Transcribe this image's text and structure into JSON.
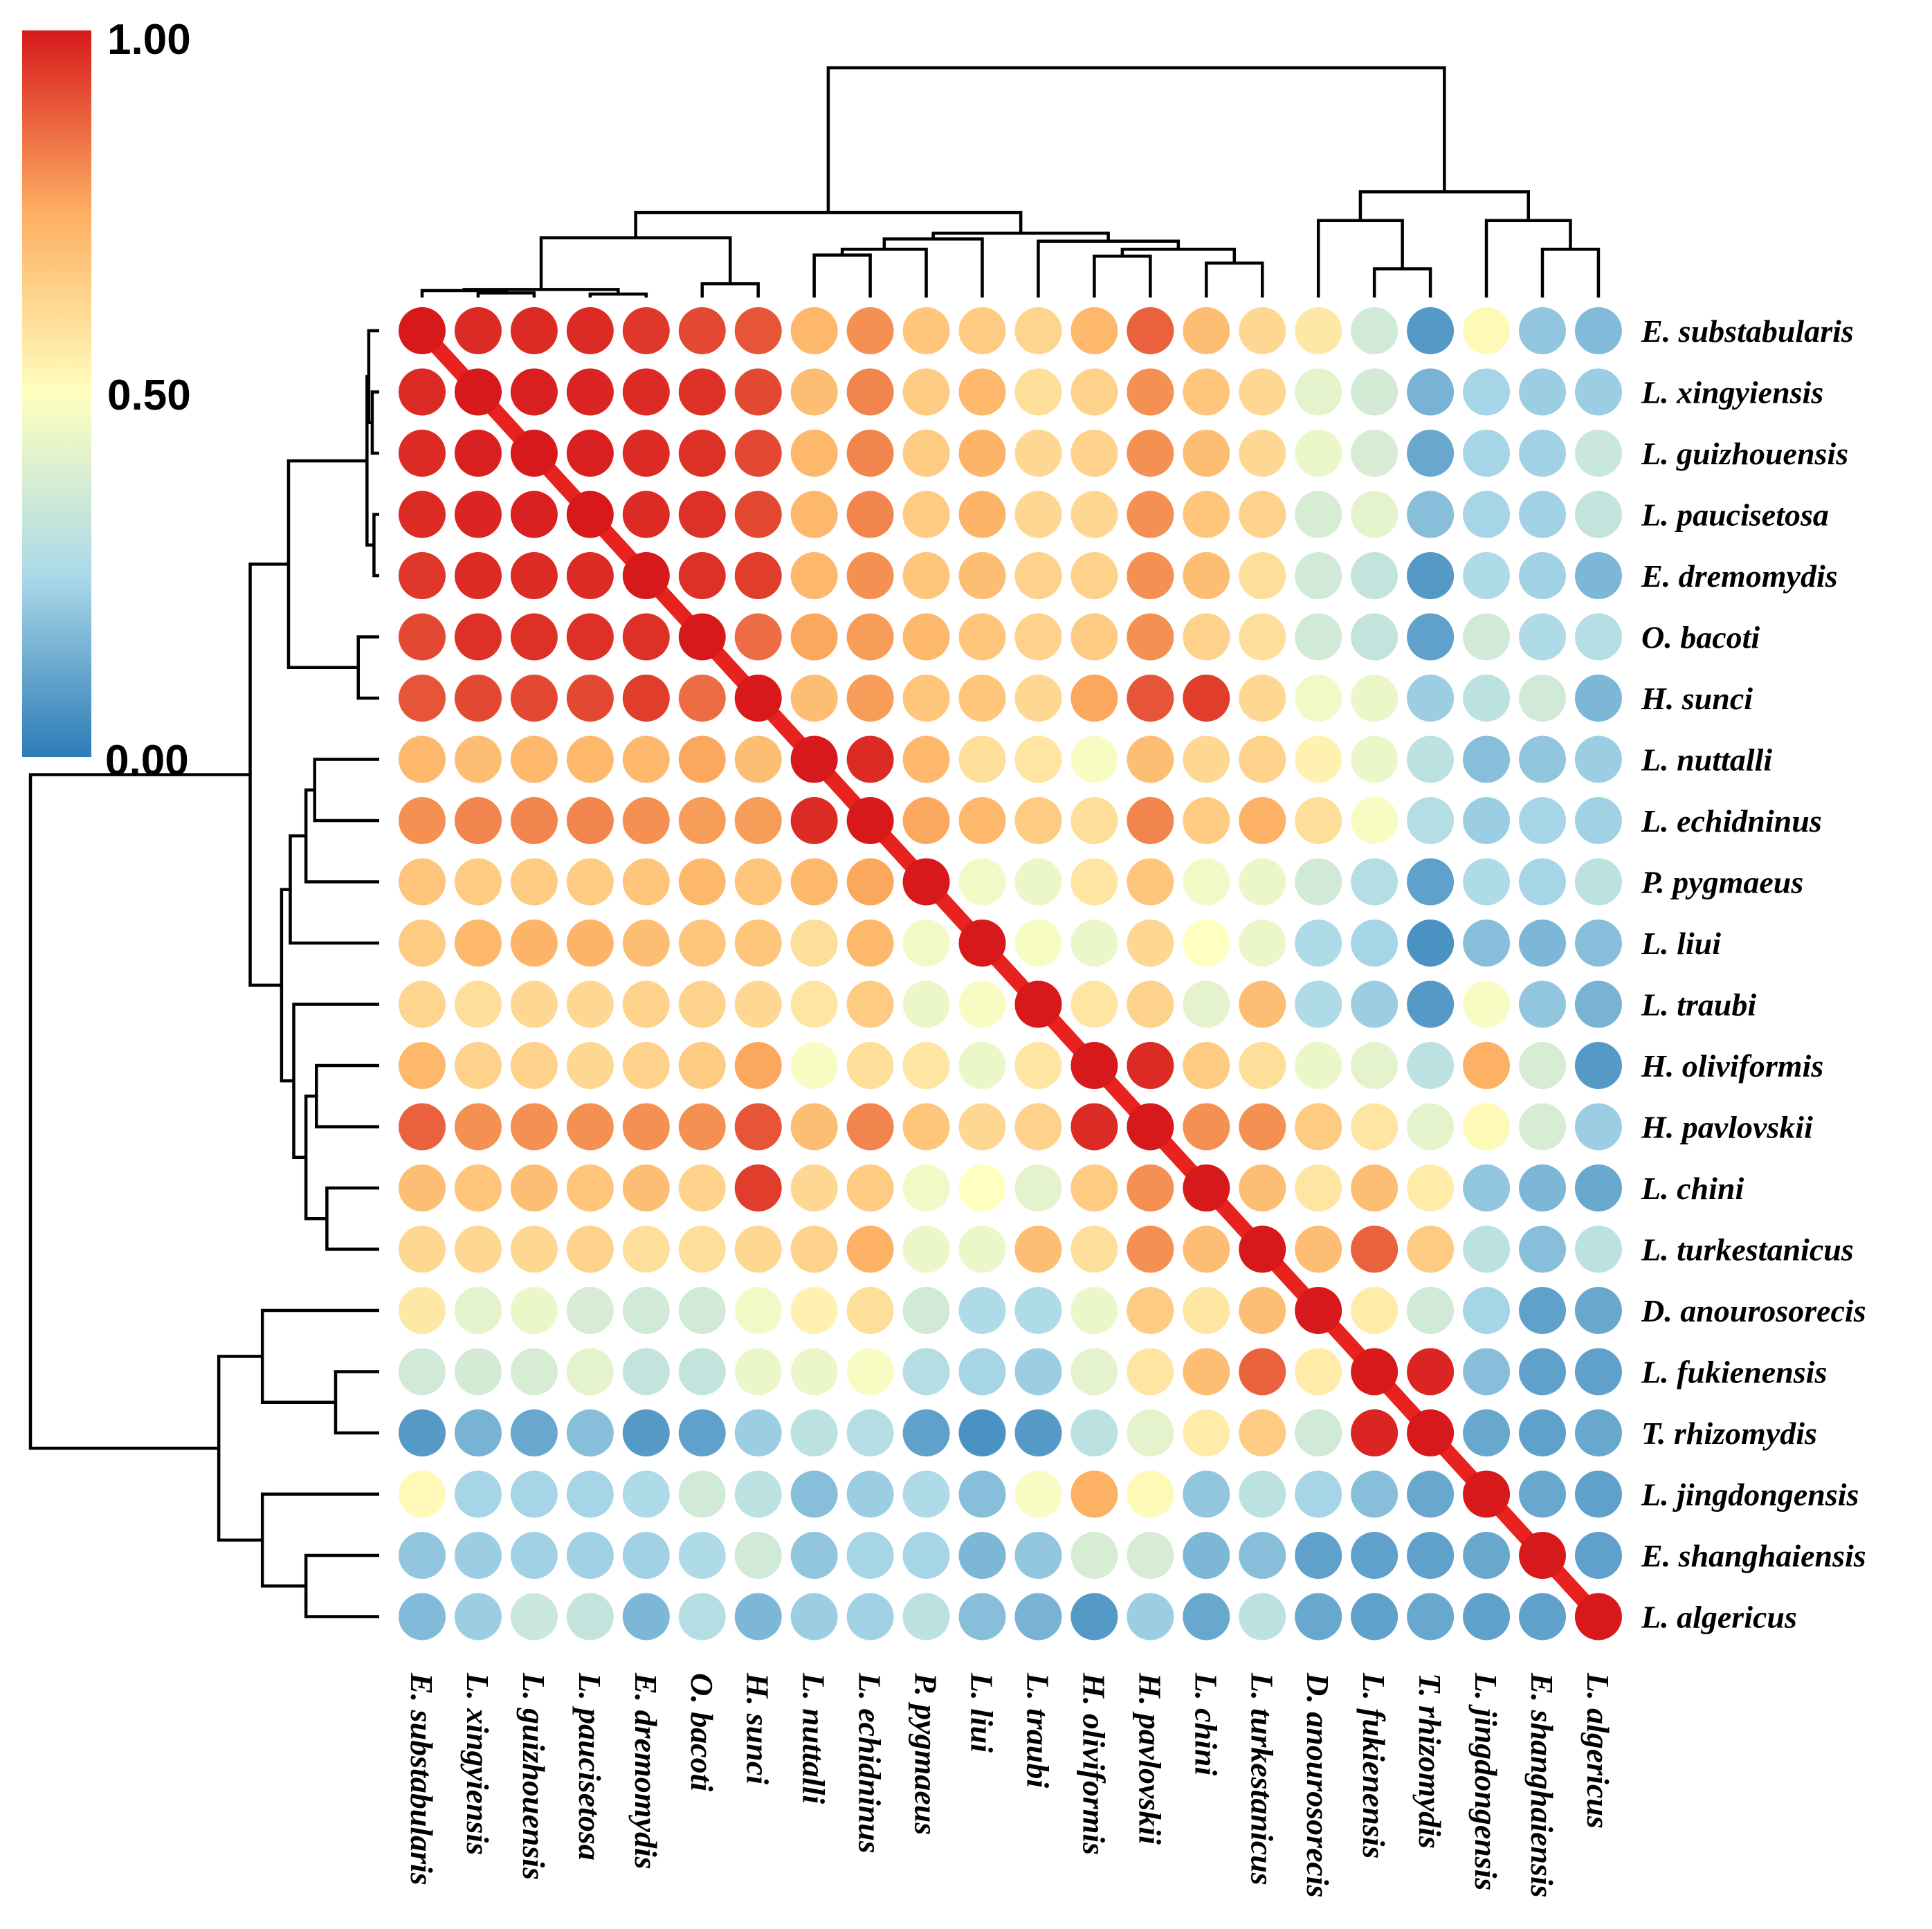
{
  "chart_data": {
    "type": "heatmap",
    "marker": "circle",
    "colorbar": {
      "min": 0.0,
      "max": 1.0,
      "ticks": [
        "1.00",
        "0.50",
        "0.00"
      ],
      "colors": [
        "#2c7bb6",
        "#abd9e9",
        "#ffffbf",
        "#fdae61",
        "#d7191c"
      ]
    },
    "labels": [
      "E. substabularis",
      "L. xingyiensis",
      "L. guizhouensis",
      "L. paucisetosa",
      "E. dremomydis",
      "O. bacoti",
      "H. sunci",
      "L. nuttalli",
      "L. echidninus",
      "P. pygmaeus",
      "L. liui",
      "L. traubi",
      "H. oliviformis",
      "H. pavlovskii",
      "L. chini",
      "L. turkestanicus",
      "D. anourosorecis",
      "L. fukienensis",
      "T. rhizomydis",
      "L. jingdongensis",
      "E. shanghaiensis",
      "L. algericus"
    ],
    "matrix": [
      [
        1.0,
        0.97,
        0.97,
        0.97,
        0.95,
        0.92,
        0.9,
        0.72,
        0.8,
        0.68,
        0.66,
        0.63,
        0.72,
        0.88,
        0.7,
        0.62,
        0.57,
        0.36,
        0.08,
        0.52,
        0.2,
        0.17
      ],
      [
        0.97,
        1.0,
        0.99,
        0.98,
        0.97,
        0.96,
        0.92,
        0.7,
        0.82,
        0.66,
        0.72,
        0.6,
        0.64,
        0.8,
        0.68,
        0.62,
        0.42,
        0.37,
        0.15,
        0.24,
        0.22,
        0.22
      ],
      [
        0.97,
        0.99,
        1.0,
        0.99,
        0.97,
        0.96,
        0.92,
        0.72,
        0.82,
        0.66,
        0.73,
        0.62,
        0.64,
        0.8,
        0.7,
        0.62,
        0.44,
        0.38,
        0.12,
        0.24,
        0.23,
        0.34
      ],
      [
        0.97,
        0.98,
        0.99,
        1.0,
        0.97,
        0.96,
        0.92,
        0.72,
        0.82,
        0.66,
        0.73,
        0.62,
        0.62,
        0.8,
        0.68,
        0.64,
        0.38,
        0.42,
        0.18,
        0.24,
        0.23,
        0.32
      ],
      [
        0.95,
        0.97,
        0.97,
        0.97,
        1.0,
        0.96,
        0.94,
        0.72,
        0.8,
        0.68,
        0.7,
        0.64,
        0.64,
        0.8,
        0.7,
        0.6,
        0.36,
        0.32,
        0.08,
        0.26,
        0.23,
        0.16
      ],
      [
        0.92,
        0.96,
        0.96,
        0.96,
        0.96,
        1.0,
        0.86,
        0.76,
        0.78,
        0.72,
        0.68,
        0.64,
        0.66,
        0.8,
        0.64,
        0.6,
        0.36,
        0.32,
        0.1,
        0.36,
        0.26,
        0.28
      ],
      [
        0.9,
        0.92,
        0.92,
        0.92,
        0.94,
        0.86,
        1.0,
        0.7,
        0.78,
        0.68,
        0.68,
        0.62,
        0.76,
        0.9,
        0.94,
        0.62,
        0.46,
        0.44,
        0.22,
        0.3,
        0.36,
        0.16
      ],
      [
        0.72,
        0.7,
        0.72,
        0.72,
        0.72,
        0.76,
        0.7,
        1.0,
        0.97,
        0.72,
        0.6,
        0.58,
        0.48,
        0.7,
        0.62,
        0.64,
        0.54,
        0.44,
        0.3,
        0.18,
        0.2,
        0.22
      ],
      [
        0.8,
        0.82,
        0.82,
        0.82,
        0.8,
        0.78,
        0.78,
        0.97,
        1.0,
        0.76,
        0.72,
        0.66,
        0.6,
        0.82,
        0.66,
        0.74,
        0.6,
        0.48,
        0.28,
        0.22,
        0.24,
        0.23
      ],
      [
        0.68,
        0.66,
        0.66,
        0.66,
        0.68,
        0.72,
        0.68,
        0.72,
        0.76,
        1.0,
        0.46,
        0.44,
        0.58,
        0.68,
        0.46,
        0.44,
        0.36,
        0.28,
        0.1,
        0.26,
        0.24,
        0.3
      ],
      [
        0.66,
        0.72,
        0.73,
        0.73,
        0.7,
        0.68,
        0.68,
        0.6,
        0.72,
        0.46,
        1.0,
        0.48,
        0.44,
        0.62,
        0.5,
        0.44,
        0.26,
        0.24,
        0.06,
        0.18,
        0.16,
        0.18
      ],
      [
        0.63,
        0.6,
        0.62,
        0.62,
        0.64,
        0.64,
        0.62,
        0.58,
        0.66,
        0.44,
        0.48,
        1.0,
        0.58,
        0.64,
        0.42,
        0.7,
        0.26,
        0.22,
        0.08,
        0.48,
        0.2,
        0.15
      ],
      [
        0.72,
        0.64,
        0.64,
        0.62,
        0.64,
        0.66,
        0.76,
        0.48,
        0.6,
        0.58,
        0.44,
        0.58,
        1.0,
        0.97,
        0.66,
        0.6,
        0.44,
        0.42,
        0.3,
        0.74,
        0.38,
        0.08
      ],
      [
        0.88,
        0.8,
        0.8,
        0.8,
        0.8,
        0.8,
        0.9,
        0.7,
        0.82,
        0.68,
        0.62,
        0.64,
        0.97,
        1.0,
        0.8,
        0.8,
        0.66,
        0.58,
        0.42,
        0.52,
        0.38,
        0.22
      ],
      [
        0.7,
        0.68,
        0.7,
        0.68,
        0.7,
        0.64,
        0.94,
        0.62,
        0.66,
        0.46,
        0.5,
        0.42,
        0.66,
        0.8,
        1.0,
        0.7,
        0.58,
        0.7,
        0.56,
        0.2,
        0.16,
        0.12
      ],
      [
        0.62,
        0.62,
        0.62,
        0.64,
        0.6,
        0.6,
        0.62,
        0.64,
        0.74,
        0.44,
        0.44,
        0.7,
        0.6,
        0.8,
        0.7,
        1.0,
        0.7,
        0.88,
        0.66,
        0.3,
        0.18,
        0.3
      ],
      [
        0.57,
        0.42,
        0.44,
        0.38,
        0.36,
        0.36,
        0.46,
        0.54,
        0.6,
        0.36,
        0.26,
        0.26,
        0.44,
        0.66,
        0.58,
        0.7,
        1.0,
        0.56,
        0.36,
        0.24,
        0.1,
        0.12
      ],
      [
        0.36,
        0.37,
        0.38,
        0.42,
        0.32,
        0.32,
        0.44,
        0.44,
        0.48,
        0.28,
        0.24,
        0.22,
        0.42,
        0.58,
        0.7,
        0.88,
        0.56,
        1.0,
        0.98,
        0.18,
        0.1,
        0.1
      ],
      [
        0.08,
        0.15,
        0.12,
        0.18,
        0.08,
        0.1,
        0.22,
        0.3,
        0.28,
        0.1,
        0.06,
        0.08,
        0.3,
        0.42,
        0.56,
        0.66,
        0.36,
        0.98,
        1.0,
        0.12,
        0.1,
        0.12
      ],
      [
        0.52,
        0.24,
        0.24,
        0.24,
        0.26,
        0.36,
        0.3,
        0.18,
        0.22,
        0.26,
        0.18,
        0.48,
        0.74,
        0.52,
        0.2,
        0.3,
        0.24,
        0.18,
        0.12,
        1.0,
        0.12,
        0.1
      ],
      [
        0.2,
        0.22,
        0.23,
        0.23,
        0.23,
        0.26,
        0.36,
        0.2,
        0.24,
        0.24,
        0.16,
        0.2,
        0.38,
        0.38,
        0.16,
        0.18,
        0.1,
        0.1,
        0.1,
        0.12,
        1.0,
        0.1
      ],
      [
        0.17,
        0.22,
        0.34,
        0.32,
        0.16,
        0.28,
        0.16,
        0.22,
        0.23,
        0.3,
        0.18,
        0.15,
        0.08,
        0.22,
        0.12,
        0.3,
        0.12,
        0.1,
        0.12,
        0.1,
        0.1,
        1.0
      ]
    ]
  }
}
